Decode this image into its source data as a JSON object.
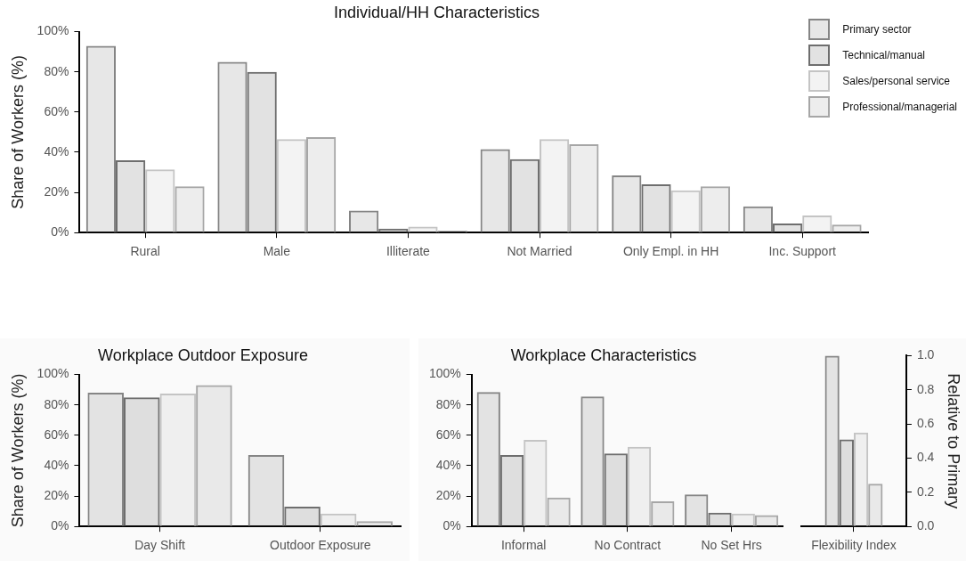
{
  "chart_data": [
    {
      "type": "bar",
      "title": "Individual/HH Characteristics",
      "ylabel": "Share of Workers (%)",
      "categories": [
        "Rural",
        "Male",
        "Illiterate",
        "Not Married",
        "Only Empl. in HH",
        "Inc. Support"
      ],
      "legend": "top right",
      "ylim": [
        0,
        100
      ],
      "yticks": [
        {
          "value": 0,
          "label": "0%"
        },
        {
          "value": 20,
          "label": "20%"
        },
        {
          "value": 40,
          "label": "40%"
        },
        {
          "value": 60,
          "label": "60%"
        },
        {
          "value": 80,
          "label": "80%"
        },
        {
          "value": 100,
          "label": "100%"
        }
      ],
      "series": [
        {
          "name": "Primary sector",
          "color": "#858585",
          "values": [
            93,
            85,
            11,
            41.5,
            28.5,
            13
          ]
        },
        {
          "name": "Technical/manual",
          "color": "#6e6e6e",
          "values": [
            36,
            80,
            2,
            36.5,
            24,
            4.5
          ]
        },
        {
          "name": "Sales/personal service",
          "color": "#c4c4c4",
          "values": [
            31.5,
            46.5,
            3,
            46.5,
            21,
            8.5
          ]
        },
        {
          "name": "Professional/managerial",
          "color": "#a6a6a6",
          "values": [
            23,
            47.5,
            1,
            44,
            23,
            4
          ]
        }
      ]
    },
    {
      "type": "bar",
      "title": "Workplace Outdoor Exposure",
      "ylabel": "Share of Workers (%)",
      "categories": [
        "Day Shift",
        "Outdoor Exposure"
      ],
      "ylim": [
        0,
        100
      ],
      "yticks": [
        {
          "value": 0,
          "label": "0%"
        },
        {
          "value": 20,
          "label": "20%"
        },
        {
          "value": 40,
          "label": "40%"
        },
        {
          "value": 60,
          "label": "60%"
        },
        {
          "value": 80,
          "label": "80%"
        },
        {
          "value": 100,
          "label": "100%"
        }
      ],
      "series": [
        {
          "color": "#858585",
          "values": [
            88,
            47
          ]
        },
        {
          "color": "#6e6e6e",
          "values": [
            85,
            13
          ]
        },
        {
          "color": "#c4c4c4",
          "values": [
            87.5,
            8.5
          ]
        },
        {
          "color": "#a6a6a6",
          "values": [
            93,
            3.5
          ]
        }
      ]
    },
    {
      "type": "bar",
      "title": "Workplace Characteristics",
      "categories": [
        "Informal",
        "No Contract",
        "No Set Hrs"
      ],
      "ylim": [
        0,
        100
      ],
      "yticks": [
        {
          "value": 0,
          "label": "0%"
        },
        {
          "value": 20,
          "label": "20%"
        },
        {
          "value": 40,
          "label": "40%"
        },
        {
          "value": 60,
          "label": "60%"
        },
        {
          "value": 80,
          "label": "80%"
        },
        {
          "value": 100,
          "label": "100%"
        }
      ],
      "series": [
        {
          "color": "#858585",
          "values": [
            88.5,
            85.5,
            21
          ]
        },
        {
          "color": "#6e6e6e",
          "values": [
            47,
            48,
            9
          ]
        },
        {
          "color": "#c4c4c4",
          "values": [
            57,
            52.5,
            8.5
          ]
        },
        {
          "color": "#a6a6a6",
          "values": [
            19,
            16.5,
            7.5
          ]
        }
      ]
    },
    {
      "type": "bar",
      "y2label": "Relative to Primary",
      "categories": [
        "Flexibility Index"
      ],
      "y2lim": [
        0,
        1
      ],
      "y2ticks": [
        {
          "value": 0,
          "label": "0.0"
        },
        {
          "value": 0.2,
          "label": "0.2"
        },
        {
          "value": 0.4,
          "label": "0.4"
        },
        {
          "value": 0.6,
          "label": "0.6"
        },
        {
          "value": 0.8,
          "label": "0.8"
        },
        {
          "value": 1,
          "label": "1.0"
        }
      ],
      "series": [
        {
          "color": "#858585",
          "axis": "y2",
          "values": [
            1
          ]
        },
        {
          "color": "#6e6e6e",
          "axis": "y2",
          "values": [
            0.51
          ]
        },
        {
          "color": "#c4c4c4",
          "axis": "y2",
          "values": [
            0.55
          ]
        },
        {
          "color": "#a6a6a6",
          "axis": "y2",
          "values": [
            0.25
          ]
        }
      ]
    }
  ]
}
